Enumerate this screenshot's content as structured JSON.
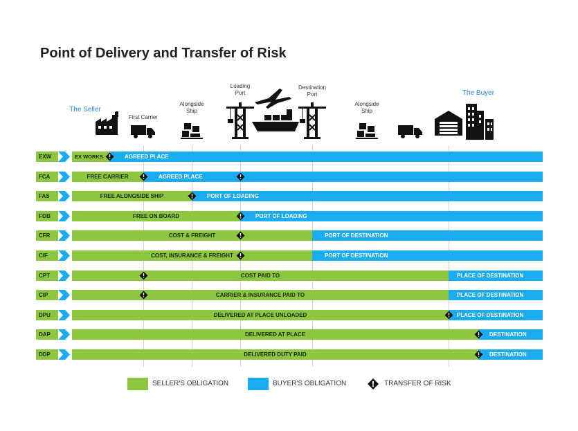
{
  "title": "Point of Delivery and Transfer of Risk",
  "points": [
    {
      "label": "The Seller",
      "highlight": true,
      "icon": "factory-icon"
    },
    {
      "label": "First Carrier",
      "highlight": false,
      "icon": "truck-icon"
    },
    {
      "label": "Alongside\nShip",
      "highlight": false,
      "icon": "boxes-icon"
    },
    {
      "label": "Loading\nPort",
      "highlight": false,
      "icon": "crane-icon"
    },
    {
      "label": "",
      "highlight": false,
      "icon": "ship-plane-icon"
    },
    {
      "label": "Destination\nPort",
      "highlight": false,
      "icon": "crane-icon"
    },
    {
      "label": "Alongside\nShip",
      "highlight": false,
      "icon": "boxes-icon"
    },
    {
      "label": "",
      "highlight": false,
      "icon": "truck-icon"
    },
    {
      "label": "",
      "highlight": false,
      "icon": "warehouse-icon"
    },
    {
      "label": "The Buyer",
      "highlight": true,
      "icon": "buildings-icon"
    }
  ],
  "terms": [
    {
      "code": "EXW",
      "seller_label": "EX WORKS",
      "buyer_label": "AGREED PLACE",
      "risk_point": 0,
      "cost_point": 0
    },
    {
      "code": "FCA",
      "seller_label": "FREE CARRIER",
      "buyer_label": "AGREED PLACE",
      "risk_point": 1,
      "cost_point": 1,
      "extra_marker_point": 3
    },
    {
      "code": "FAS",
      "seller_label": "FREE ALONGSIDE SHIP",
      "buyer_label": "PORT OF LOADING",
      "risk_point": 2,
      "cost_point": 2
    },
    {
      "code": "FOB",
      "seller_label": "FREE  ON BOARD",
      "buyer_label": "PORT OF LOADING",
      "risk_point": 3,
      "cost_point": 3
    },
    {
      "code": "CFR",
      "seller_label": "COST & FREIGHT",
      "buyer_label": "PORT OF DESTINATION",
      "risk_point": 3,
      "cost_point": 5
    },
    {
      "code": "CIF",
      "seller_label": "COST, INSURANCE & FREIGHT",
      "buyer_label": "PORT OF DESTINATION",
      "risk_point": 3,
      "cost_point": 5
    },
    {
      "code": "CPT",
      "seller_label": "COST PAID TO",
      "buyer_label": "PLACE OF DESTINATION",
      "risk_point": 1,
      "cost_point": 8
    },
    {
      "code": "CIP",
      "seller_label": "CARRIER & INSURANCE PAID TO",
      "buyer_label": "PLACE OF DESTINATION",
      "risk_point": 1,
      "cost_point": 8
    },
    {
      "code": "DPU",
      "seller_label": "DELIVERED AT PLACE UNLOADED",
      "buyer_label": "PLACE OF DESTINATION",
      "risk_point": 8,
      "cost_point": 8
    },
    {
      "code": "DAP",
      "seller_label": "DELIVERED AT PLACE",
      "buyer_label": "DESTINATION",
      "risk_point": 9,
      "cost_point": 9
    },
    {
      "code": "DDP",
      "seller_label": "DELIVERED DUTY PAID",
      "buyer_label": "DESTINATION",
      "risk_point": 9,
      "cost_point": 9
    }
  ],
  "legend": {
    "seller": "SELLER'S OBLIGATION",
    "buyer": "BUYER'S OBLIGATION",
    "risk": "TRANSFER OF RISK"
  },
  "colors": {
    "seller": "#8dc63f",
    "buyer": "#1aabf0",
    "highlight_text": "#2e86d4",
    "marker": "#111111"
  }
}
